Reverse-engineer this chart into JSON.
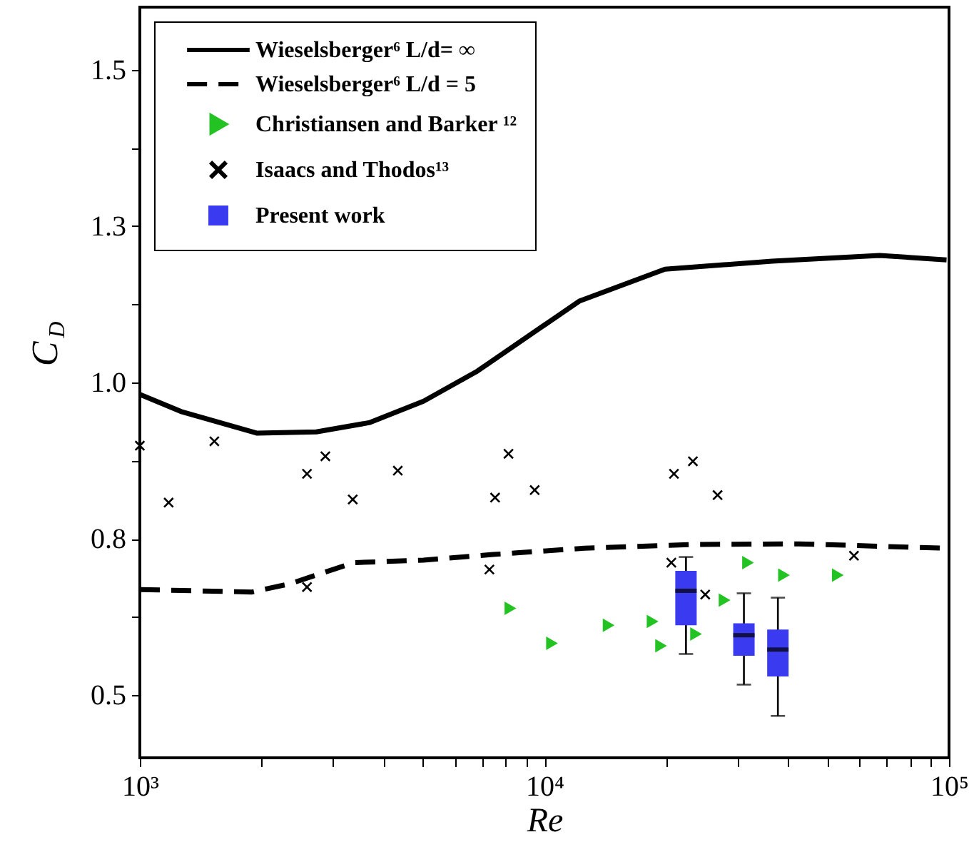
{
  "chart_data": {
    "type": "line",
    "xlabel": "Re",
    "ylabel": "C$_{D}$",
    "log": "x",
    "xlim": [
      1000,
      100000
    ],
    "ylim": [
      0.4,
      1.6
    ],
    "grid": false,
    "legend": "top left",
    "xticks": [
      {
        "value": 1000,
        "label": "10³"
      },
      {
        "value": 2000,
        "label": null
      },
      {
        "value": 3000,
        "label": null
      },
      {
        "value": 4000,
        "label": null
      },
      {
        "value": 5000,
        "label": null
      },
      {
        "value": 6000,
        "label": null
      },
      {
        "value": 7000,
        "label": null
      },
      {
        "value": 8000,
        "label": null
      },
      {
        "value": 9000,
        "label": null
      },
      {
        "value": 10000,
        "label": "10⁴"
      },
      {
        "value": 20000,
        "label": null
      },
      {
        "value": 30000,
        "label": null
      },
      {
        "value": 40000,
        "label": null
      },
      {
        "value": 50000,
        "label": null
      },
      {
        "value": 60000,
        "label": null
      },
      {
        "value": 70000,
        "label": null
      },
      {
        "value": 80000,
        "label": null
      },
      {
        "value": 90000,
        "label": null
      },
      {
        "value": 100000,
        "label": "10⁵"
      }
    ],
    "yticks": [
      {
        "value": 0.5,
        "label": "0.5"
      },
      {
        "value": 0.625,
        "label": null
      },
      {
        "value": 0.75,
        "label": "0.8"
      },
      {
        "value": 0.875,
        "label": null
      },
      {
        "value": 1.0,
        "label": "1.0"
      },
      {
        "value": 1.125,
        "label": null
      },
      {
        "value": 1.25,
        "label": "1.3"
      },
      {
        "value": 1.375,
        "label": null
      },
      {
        "value": 1.5,
        "label": "1.5"
      }
    ],
    "series": [
      {
        "name": "Wieselsberger⁶ L/d= ∞",
        "type": "line",
        "line_style": "solid",
        "color": "#000000",
        "x": [
          1000,
          1271,
          1950,
          2730,
          3705,
          5025,
          6820,
          12190,
          19860,
          36550,
          67300,
          98600
        ],
        "values": [
          0.981,
          0.953,
          0.919,
          0.921,
          0.936,
          0.97,
          1.018,
          1.13,
          1.181,
          1.194,
          1.203,
          1.196
        ]
      },
      {
        "name": "Wieselsberger⁶ L/d = 5",
        "type": "line",
        "line_style": "dashed",
        "color": "#000000",
        "x": [
          1000,
          1892,
          2344,
          3381,
          5025,
          7470,
          12560,
          23130,
          42560,
          98600
        ],
        "values": [
          0.669,
          0.665,
          0.678,
          0.712,
          0.716,
          0.725,
          0.735,
          0.741,
          0.742,
          0.735
        ]
      },
      {
        "name": "Christiansen and Barker ¹²",
        "type": "scatter",
        "marker": "triangle",
        "color": "#22c322",
        "x": [
          8240,
          10440,
          14410,
          18510,
          19420,
          23700,
          27880,
          31860,
          39090,
          53100
        ],
        "values": [
          0.639,
          0.583,
          0.612,
          0.618,
          0.579,
          0.598,
          0.652,
          0.712,
          0.692,
          0.692
        ]
      },
      {
        "name": "Isaacs and Thodos¹³",
        "type": "scatter",
        "marker": "cross",
        "color": "#000000",
        "x": [
          1000,
          1178,
          1528,
          2589,
          2874,
          3359,
          4340,
          7550,
          8150,
          9460,
          7310,
          2589,
          20900,
          23280,
          26790,
          20590,
          24970,
          58210
        ],
        "values": [
          0.899,
          0.808,
          0.906,
          0.854,
          0.882,
          0.813,
          0.859,
          0.816,
          0.886,
          0.828,
          0.701,
          0.673,
          0.854,
          0.874,
          0.82,
          0.712,
          0.661,
          0.723
        ]
      },
      {
        "name": "Present work",
        "type": "box",
        "color": "#3a3af0",
        "x": [
          22380,
          31120,
          37760
        ],
        "boxes": [
          {
            "low": 0.566,
            "q1": 0.612,
            "median": 0.667,
            "q3": 0.699,
            "high": 0.721
          },
          {
            "low": 0.517,
            "q1": 0.563,
            "median": 0.596,
            "q3": 0.615,
            "high": 0.663
          },
          {
            "low": 0.467,
            "q1": 0.53,
            "median": 0.573,
            "q3": 0.605,
            "high": 0.656
          }
        ]
      }
    ]
  }
}
